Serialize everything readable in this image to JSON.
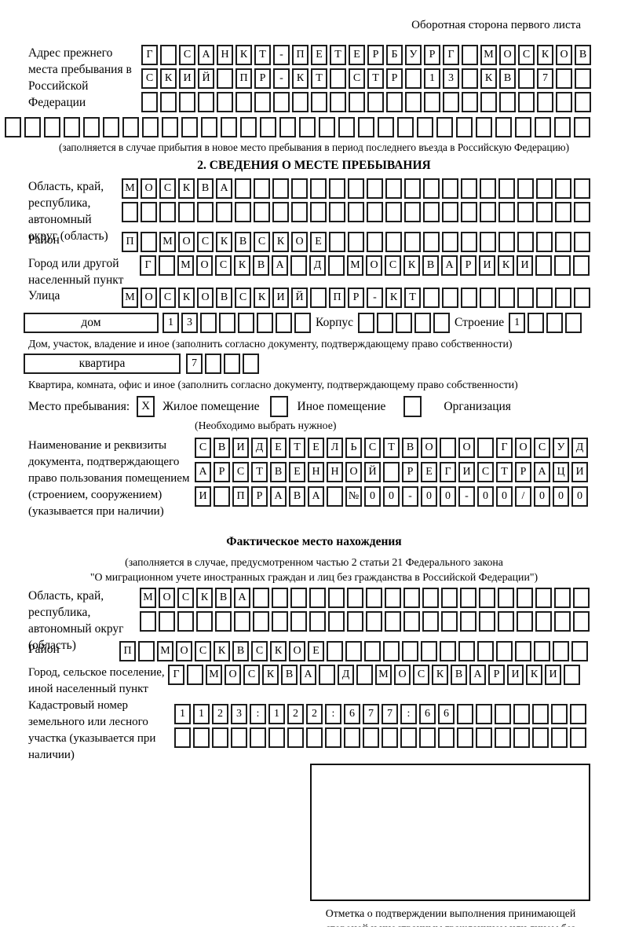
{
  "page": {
    "header_note": "Оборотная сторона первого листа"
  },
  "prev_address": {
    "label": "Адрес прежнего места пребывания в Российской Федерации",
    "rows": [
      {
        "text": "Г САНКТ-ПЕТЕРБУРГ МОСКОВ",
        "count": 24
      },
      {
        "text": "СКИЙ ПР-КТ СТР 13 КВ 7",
        "count": 24
      },
      {
        "text": "",
        "count": 24
      },
      {
        "text": "",
        "count": 30
      }
    ],
    "note": "(заполняется в случае прибытия в новое место пребывания в период последнего въезда в Российскую Федерацию)"
  },
  "section2": {
    "title": "2. СВЕДЕНИЯ О МЕСТЕ ПРЕБЫВАНИЯ",
    "region": {
      "label": "Область, край, республика, автономный округ (область)",
      "rows": [
        {
          "text": "МОСКВА",
          "count": 25
        },
        {
          "text": "",
          "count": 25
        }
      ]
    },
    "district": {
      "label": "Район",
      "row": {
        "text": "П МОСКВСКОЕ",
        "count": 25
      }
    },
    "city": {
      "label": "Город или другой населенный пункт",
      "row": {
        "text": "Г МОСКВА Д МОСКВАРИКИ",
        "count": 24
      }
    },
    "street": {
      "label": "Улица",
      "row": {
        "text": "МОСКОВСКИЙ ПР-КТ",
        "count": 25
      }
    },
    "house": {
      "label": "дом",
      "row": {
        "text": "13",
        "count": 8
      },
      "korpus_label": "Корпус",
      "korpus_row": {
        "text": "",
        "count": 5
      },
      "stroenie_label": "Строение",
      "stroenie_row": {
        "text": "1",
        "count": 4
      },
      "note": "Дом, участок, владение и иное (заполнить согласно документу, подтверждающему право собственности)"
    },
    "apartment": {
      "label": "квартира",
      "row": {
        "text": "7",
        "count": 4
      },
      "note": "Квартира, комната, офис и иное (заполнить согласно документу, подтверждающему право собственности)"
    },
    "stay": {
      "label": "Место пребывания:",
      "options": [
        {
          "label": "Жилое помещение",
          "mark": "X"
        },
        {
          "label": "Иное помещение",
          "mark": ""
        },
        {
          "label": "Организация",
          "mark": ""
        }
      ],
      "note": "(Необходимо выбрать нужное)"
    },
    "document": {
      "label": "Наименование и реквизиты документа, подтверждающего право пользования помещением (строением, сооружением) (указывается при наличии)",
      "rows": [
        {
          "text": "СВИДЕТЕЛЬСТВО О ГОСУД",
          "count": 21
        },
        {
          "text": "АРСТВЕННОЙ РЕГИСТРАЦИ",
          "count": 21
        },
        {
          "text": "И ПРАВА №00-00-00/000",
          "count": 21
        }
      ]
    }
  },
  "actual_location": {
    "title": "Фактическое место нахождения",
    "note_line1": "(заполняется в случае, предусмотренном частью 2 статьи 21 Федерального закона",
    "note_line2": "\"О миграционном учете иностранных граждан и лиц без гражданства в Российской Федерации\")",
    "region": {
      "label": "Область, край, республика, автономный округ (область)",
      "rows": [
        {
          "text": "МОСКВА",
          "count": 24
        },
        {
          "text": "",
          "count": 24
        }
      ]
    },
    "district": {
      "label": "Район",
      "row": {
        "text": "П МОСКВСКОЕ",
        "count": 25
      }
    },
    "city": {
      "label": "Город, сельское поселение, иной населенный пункт",
      "row": {
        "text": "Г МОСКВА Д МОСКВАРИКИ",
        "count": 22
      }
    },
    "cadastral": {
      "label": "Кадастровый номер земельного или лесного участка (указывается при наличии)",
      "rows": [
        {
          "text": "1123:122:677:66",
          "count": 22
        },
        {
          "text": "",
          "count": 22
        }
      ]
    },
    "mark_note": "Отметка о подтверждении выполнения принимающей стороной и иностранным гражданином или лицом без гражданства действий, необходимых для его постановки на учет по месту пребывания"
  }
}
